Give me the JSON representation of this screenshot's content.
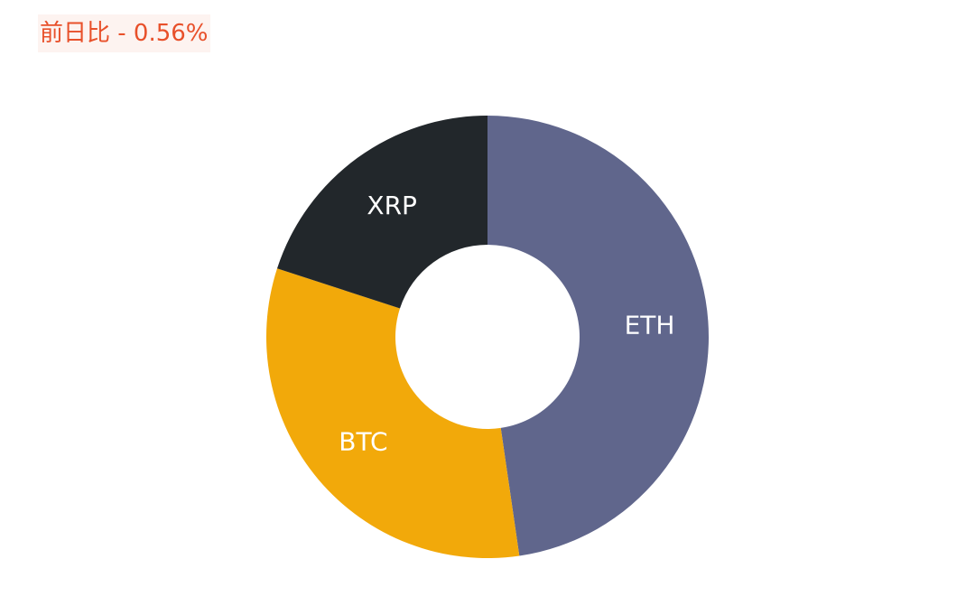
{
  "header": {
    "change_text": "前日比 - 0.56%"
  },
  "chart_data": {
    "type": "pie",
    "variant": "donut",
    "title": "",
    "slices": [
      {
        "label": "ETH",
        "value": 47.7,
        "color": "#60668c"
      },
      {
        "label": "BTC",
        "value": 32.3,
        "color": "#f2a90a"
      },
      {
        "label": "XRP",
        "value": 20.0,
        "color": "#22272b"
      }
    ],
    "start": "top",
    "direction": "clockwise",
    "legend": "none"
  }
}
